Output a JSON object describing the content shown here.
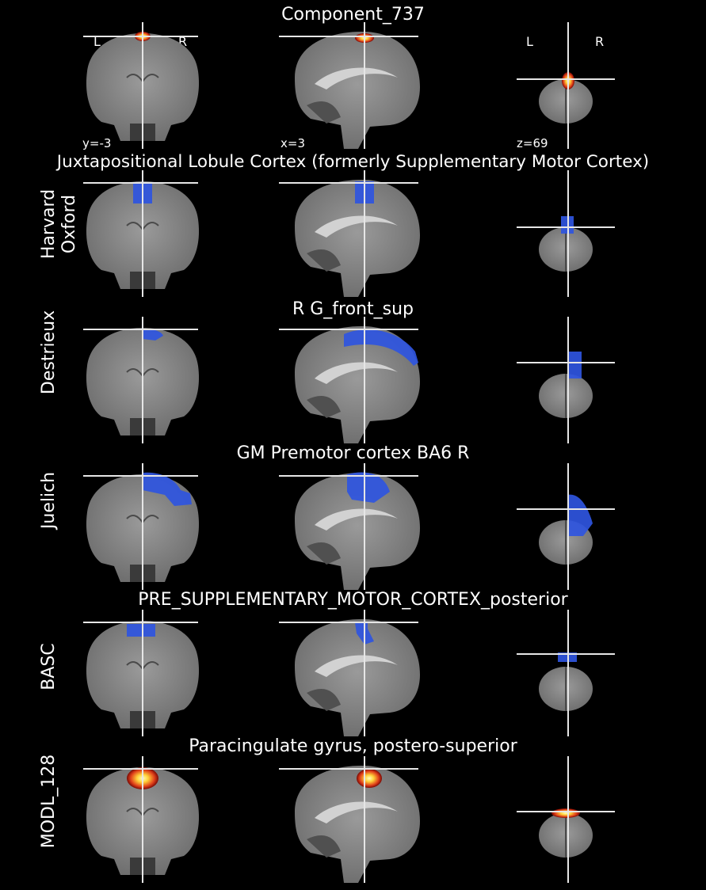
{
  "header": {
    "title": "Component_737",
    "coords": {
      "coronal": "y=-3",
      "sagittal": "x=3",
      "axial": "z=69"
    },
    "orientation": {
      "left": "L",
      "right": "R"
    }
  },
  "rows": [
    {
      "atlas": [
        "Harvard",
        "Oxford"
      ],
      "region": "Juxtapositional Lobule Cortex (formerly Supplementary Motor Cortex)"
    },
    {
      "atlas": [
        "Destrieux"
      ],
      "region": "R G_front_sup"
    },
    {
      "atlas": [
        "Juelich"
      ],
      "region": "GM Premotor cortex BA6 R"
    },
    {
      "atlas": [
        "BASC"
      ],
      "region": "PRE_SUPPLEMENTARY_MOTOR_CORTEX_posterior"
    },
    {
      "atlas": [
        "MODL_128"
      ],
      "region": "Paracingulate gyrus, postero-superior"
    }
  ],
  "colors": {
    "background": "#000000",
    "atlas_overlay": "#2f55e0",
    "component_hot": "#ffd23a",
    "crosshair": "#e6e6e6"
  }
}
